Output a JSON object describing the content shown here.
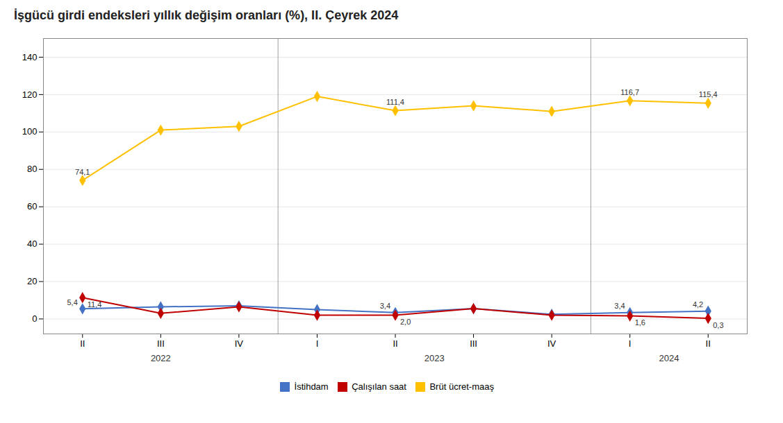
{
  "chart_data": {
    "type": "line",
    "title": "İşgücü girdi endeksleri yıllık değişim oranları (%), II. Çeyrek 2024",
    "categories": [
      "II",
      "III",
      "IV",
      "I",
      "II",
      "III",
      "IV",
      "I",
      "II"
    ],
    "groups": [
      "2022",
      "2022",
      "2022",
      "2023",
      "2023",
      "2023",
      "2023",
      "2024",
      "2024"
    ],
    "series": [
      {
        "name": "İstihdam",
        "color": "#4472C4",
        "marker": "diamond",
        "values": [
          5.4,
          6.5,
          7.0,
          5.0,
          3.4,
          5.5,
          2.5,
          3.4,
          4.2
        ],
        "value_labels": [
          "5,4",
          null,
          null,
          null,
          "3,4",
          null,
          null,
          "3,4",
          "4,2"
        ]
      },
      {
        "name": "Çalışılan saat",
        "color": "#C00000",
        "marker": "diamond",
        "values": [
          11.4,
          3.0,
          6.5,
          2.0,
          2.0,
          5.5,
          2.0,
          1.6,
          0.3
        ],
        "value_labels": [
          "11,4",
          null,
          null,
          null,
          "2,0",
          null,
          null,
          "1,6",
          "0,3"
        ]
      },
      {
        "name": "Brüt ücret-maaş",
        "color": "#FFC000",
        "marker": "diamond",
        "values": [
          74.1,
          101.0,
          103.0,
          119.0,
          111.4,
          114.0,
          111.0,
          116.7,
          115.4
        ],
        "value_labels": [
          "74,1",
          null,
          null,
          null,
          "111,4",
          null,
          null,
          "116,7",
          "115,4"
        ]
      }
    ],
    "ylim": [
      -8,
      150
    ],
    "yticks": [
      0,
      20,
      40,
      60,
      80,
      100,
      120,
      140
    ],
    "grid": true,
    "legend": "bottom",
    "data_labels": true
  }
}
